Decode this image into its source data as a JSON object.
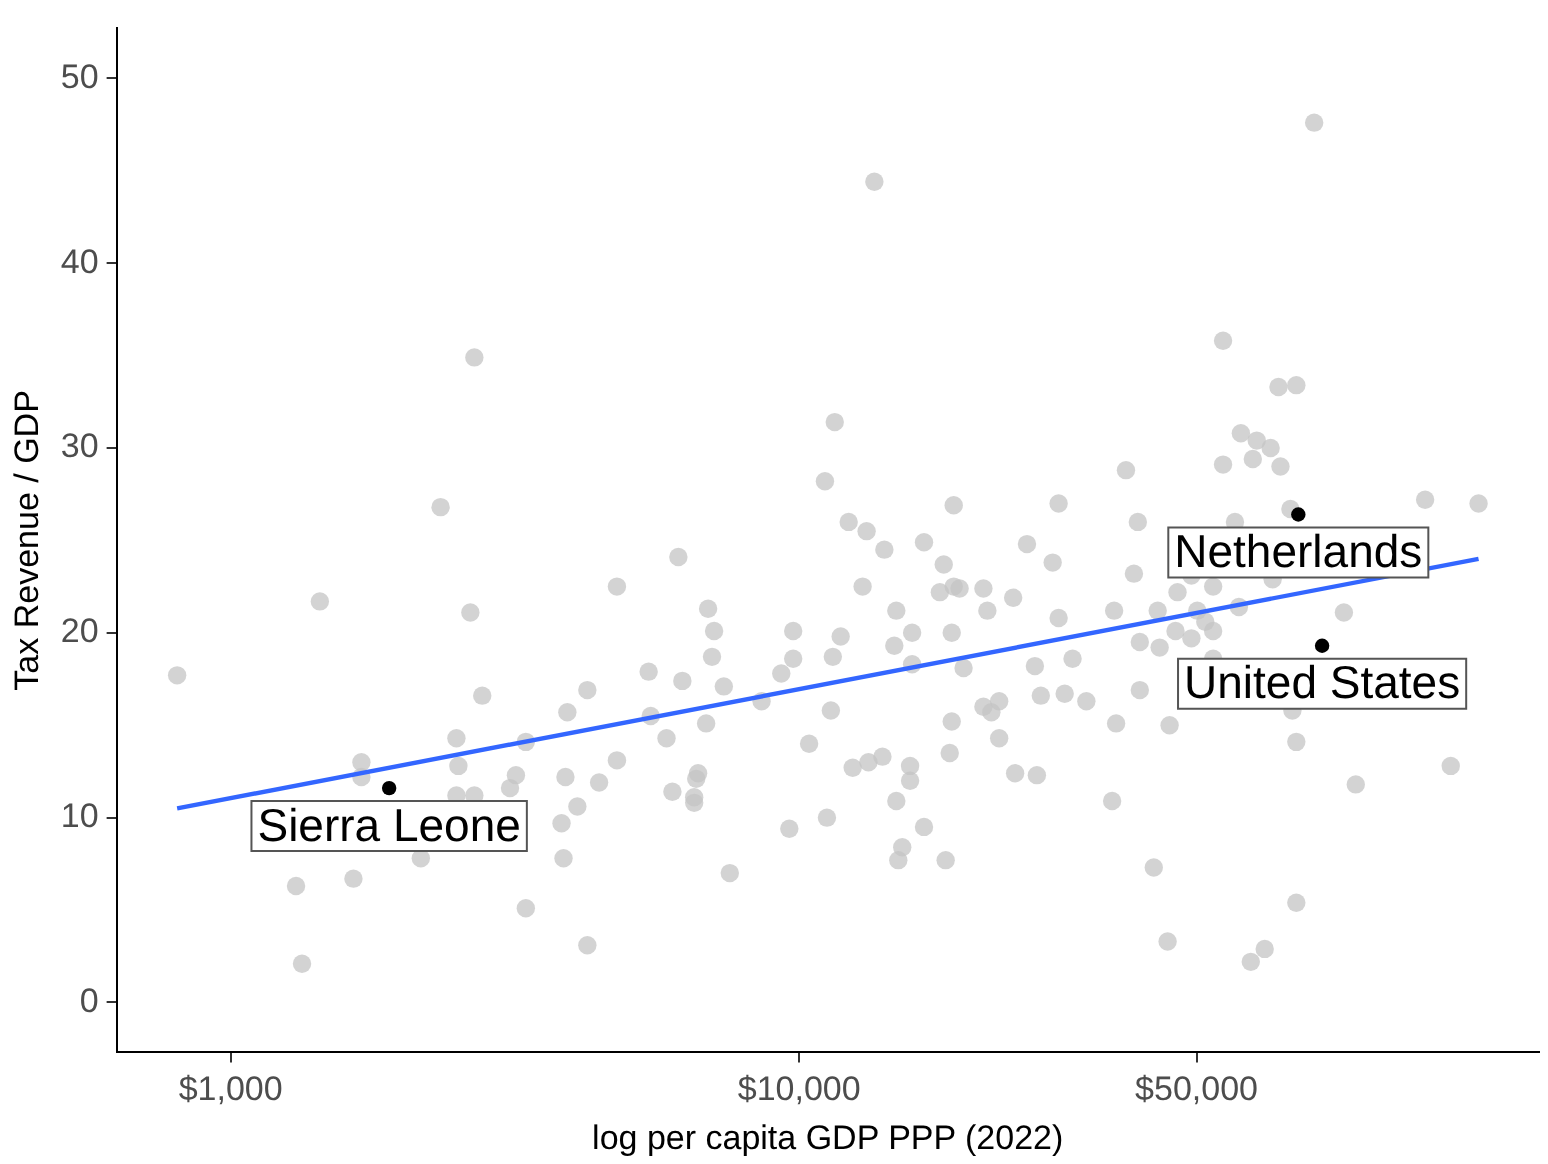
{
  "chart_data": {
    "type": "scatter",
    "xlabel": "log per capita GDP PPP (2022)",
    "ylabel": "Tax Revenue / GDP",
    "log": "x",
    "xlim": [
      630,
      200000
    ],
    "xticks": [
      {
        "value": 1000,
        "label": "$1,000"
      },
      {
        "value": 10000,
        "label": "$10,000"
      },
      {
        "value": 50000,
        "label": "$50,000"
      }
    ],
    "ylim": [
      -2.7,
      52.7
    ],
    "yticks": [
      0,
      10,
      20,
      30,
      40,
      50
    ],
    "grid": false,
    "legend": false,
    "marker": "circle",
    "series": [
      {
        "color": "#c4c4c4",
        "x": [
          805,
          1435,
          1335,
          2640,
          2770,
          4240,
          3910,
          2495,
          3305,
          1698,
          2515,
          1698,
          3175,
          3880,
          4447,
          2495,
          2683,
          3100,
          4072,
          3819,
          2160,
          3850,
          1644,
          1303,
          3305,
          4240,
          2683,
          2340,
          6130,
          4780,
          12930,
          14120,
          17960,
          17680,
          18700,
          19150,
          21090,
          23790,
          27920,
          6915,
          14820,
          21430,
          7085,
          9760,
          11830,
          15800,
          18550,
          28600,
          7025,
          9760,
          11460,
          14700,
          5435,
          6230,
          9300,
          15800,
          19460,
          25980,
          30260,
          7370,
          8587,
          11370,
          5480,
          6860,
          21090,
          21780,
          22480,
          26610,
          29310,
          18550,
          5843,
          10410,
          22480,
          4780,
          12420,
          13240,
          14010,
          15670,
          15670,
          18400,
          23980,
          26190,
          6640,
          6590,
          5984,
          6536,
          6536,
          14820,
          9608,
          11190,
          16580,
          15180,
          14940,
          18100,
          7550,
          13560,
          11550,
          11100,
          12220,
          13140,
          16580,
          18700,
          25160,
          28600,
          80520,
          55670,
          69680,
          74900,
          59840,
          63810,
          67500,
          55670,
          62800,
          70240,
          37570,
          39420,
          58420,
          73130,
          126200,
          156700,
          38800,
          48970,
          53480,
          68050,
          46290,
          35810,
          42720,
          50150,
          59360,
          90820,
          51800,
          53480,
          45920,
          48970,
          39740,
          43060,
          53480,
          32000,
          39740,
          36100,
          44830,
          73720,
          74900,
          140000,
          95300,
          35520,
          42050,
          74900,
          44470,
          65900,
          62290
        ],
        "values": [
          17.7,
          21.7,
          2.1,
          21.1,
          16.6,
          16.9,
          15.7,
          14.3,
          14.1,
          13.0,
          12.8,
          12.2,
          12.3,
          12.2,
          11.9,
          11.2,
          11.2,
          11.6,
          10.6,
          9.7,
          7.8,
          7.8,
          6.7,
          6.3,
          5.1,
          3.1,
          34.9,
          26.8,
          24.1,
          22.5,
          22.5,
          24.5,
          23.7,
          22.2,
          22.5,
          22.4,
          22.4,
          21.9,
          23.8,
          21.3,
          21.2,
          21.2,
          20.1,
          20.1,
          19.8,
          20.0,
          20.0,
          20.8,
          18.7,
          18.6,
          18.7,
          19.3,
          17.9,
          17.4,
          17.8,
          18.3,
          18.1,
          18.2,
          18.6,
          17.1,
          16.3,
          15.8,
          15.5,
          15.1,
          16.0,
          15.7,
          16.3,
          16.6,
          16.7,
          15.2,
          14.3,
          14.0,
          14.3,
          13.1,
          12.7,
          13.0,
          13.3,
          12.8,
          12.0,
          13.5,
          12.4,
          12.3,
          12.4,
          12.1,
          11.4,
          11.1,
          10.8,
          10.9,
          9.4,
          10.0,
          9.5,
          8.4,
          7.7,
          7.7,
          7.0,
          44.4,
          31.4,
          28.2,
          26.0,
          25.5,
          24.9,
          26.9,
          24.8,
          27.0,
          47.6,
          35.8,
          33.3,
          33.4,
          30.8,
          30.4,
          30.0,
          29.1,
          29.4,
          29.0,
          28.8,
          26.0,
          26.0,
          26.7,
          27.2,
          27.0,
          23.2,
          23.1,
          22.5,
          22.9,
          22.2,
          21.2,
          21.2,
          21.2,
          21.4,
          21.1,
          20.6,
          20.1,
          20.1,
          19.7,
          19.5,
          19.2,
          18.6,
          16.3,
          16.9,
          15.1,
          15.0,
          15.8,
          14.1,
          12.8,
          11.8,
          10.9,
          7.3,
          5.4,
          3.3,
          2.9,
          2.2
        ]
      },
      {
        "color": "#000000",
        "x": [
          1900,
          75510,
          83150
        ],
        "values": [
          11.6,
          26.4,
          19.3
        ]
      },
      {
        "type": "line",
        "color": "#3366ff",
        "marker": "none",
        "x": [
          805,
          156700
        ],
        "values": [
          10.5,
          24.0
        ]
      }
    ],
    "annotations": [
      {
        "text": "Sierra Leone",
        "x": 1900,
        "y": 11.6
      },
      {
        "text": "Netherlands",
        "x": 75510,
        "y": 26.4
      },
      {
        "text": "United States",
        "x": 83150,
        "y": 19.3
      }
    ]
  }
}
